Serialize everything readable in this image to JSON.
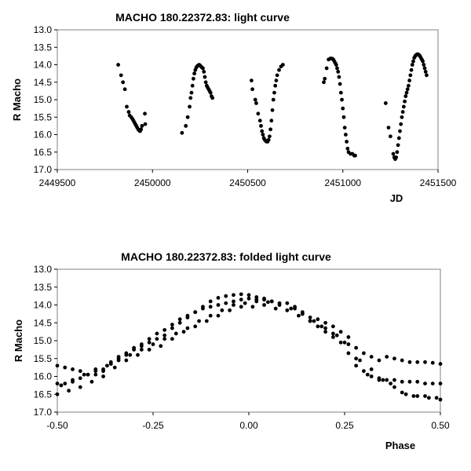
{
  "chart_data": [
    {
      "type": "scatter",
      "title": "MACHO 180.22372.83: light curve",
      "xlabel": "JD",
      "ylabel": "R Macho",
      "xlim": [
        2449500,
        2451500
      ],
      "ylim": [
        13.0,
        17.0
      ],
      "y_inverted": true,
      "grid": false,
      "legend": "none",
      "marker_color": "#000000",
      "x_ticks": [
        "2449500",
        "2450000",
        "2450500",
        "2451000",
        "2451500"
      ],
      "y_ticks": [
        "13.0",
        "13.5",
        "14.0",
        "14.5",
        "15.0",
        "15.5",
        "16.0",
        "16.5",
        "17.0"
      ],
      "series": [
        {
          "x": [
            2449820,
            2449835,
            2449845,
            2449855,
            2449865,
            2449875,
            2449880,
            2449888,
            2449895,
            2449900,
            2449905,
            2449910,
            2449915,
            2449920,
            2449925,
            2449930,
            2449935,
            2449940,
            2449945,
            2449960,
            2449962,
            2450155,
            2450175,
            2450185,
            2450195,
            2450200,
            2450205,
            2450210,
            2450215,
            2450220,
            2450225,
            2450230,
            2450235,
            2450240,
            2450245,
            2450250,
            2450255,
            2450260,
            2450265,
            2450270,
            2450275,
            2450280,
            2450285,
            2450290,
            2450295,
            2450300,
            2450305,
            2450310,
            2450315,
            2450520,
            2450525,
            2450540,
            2450545,
            2450555,
            2450565,
            2450570,
            2450575,
            2450580,
            2450585,
            2450590,
            2450595,
            2450600,
            2450605,
            2450610,
            2450615,
            2450620,
            2450625,
            2450630,
            2450635,
            2450640,
            2450645,
            2450650,
            2450655,
            2450665,
            2450675,
            2450685,
            2450900,
            2450905,
            2450915,
            2450925,
            2450935,
            2450940,
            2450945,
            2450950,
            2450955,
            2450960,
            2450965,
            2450970,
            2450975,
            2450980,
            2450985,
            2450990,
            2450995,
            2451000,
            2451005,
            2451010,
            2451015,
            2451020,
            2451025,
            2451030,
            2451040,
            2451050,
            2451060,
            2451065,
            2451225,
            2451240,
            2451250,
            2451265,
            2451270,
            2451275,
            2451280,
            2451285,
            2451290,
            2451295,
            2451300,
            2451305,
            2451310,
            2451315,
            2451320,
            2451325,
            2451330,
            2451335,
            2451340,
            2451345,
            2451350,
            2451355,
            2451360,
            2451365,
            2451370,
            2451375,
            2451380,
            2451385,
            2451390,
            2451395,
            2451400,
            2451405,
            2451410,
            2451415,
            2451420,
            2451425,
            2451430,
            2451435,
            2451440
          ],
          "y": [
            14.0,
            14.3,
            14.5,
            14.7,
            15.2,
            15.35,
            15.45,
            15.5,
            15.55,
            15.6,
            15.65,
            15.7,
            15.75,
            15.8,
            15.85,
            15.88,
            15.9,
            15.85,
            15.75,
            15.4,
            15.7,
            15.95,
            15.75,
            15.5,
            15.2,
            14.95,
            14.8,
            14.6,
            14.4,
            14.25,
            14.15,
            14.08,
            14.04,
            14.02,
            14.0,
            14.02,
            14.05,
            14.08,
            14.1,
            14.2,
            14.35,
            14.5,
            14.6,
            14.65,
            14.7,
            14.75,
            14.8,
            14.9,
            14.95,
            14.45,
            14.7,
            15.0,
            15.1,
            15.4,
            15.6,
            15.75,
            15.9,
            16.0,
            16.1,
            16.15,
            16.18,
            16.2,
            16.2,
            16.15,
            16.05,
            15.85,
            15.6,
            15.3,
            15.0,
            14.8,
            14.6,
            14.45,
            14.3,
            14.15,
            14.05,
            14.0,
            14.5,
            14.4,
            14.1,
            13.85,
            13.82,
            13.82,
            13.83,
            13.85,
            13.9,
            13.95,
            14.0,
            14.1,
            14.2,
            14.35,
            14.55,
            14.8,
            15.0,
            15.25,
            15.5,
            15.8,
            16.0,
            16.2,
            16.4,
            16.5,
            16.55,
            16.55,
            16.6,
            16.6,
            15.1,
            15.8,
            16.05,
            16.55,
            16.65,
            16.7,
            16.65,
            16.5,
            16.3,
            16.1,
            15.9,
            15.7,
            15.5,
            15.35,
            15.2,
            15.05,
            14.9,
            14.8,
            14.7,
            14.6,
            14.45,
            14.3,
            14.15,
            14.0,
            13.9,
            13.8,
            13.75,
            13.72,
            13.7,
            13.7,
            13.72,
            13.75,
            13.8,
            13.85,
            13.9,
            14.0,
            14.1,
            14.2,
            14.3
          ]
        }
      ]
    },
    {
      "type": "scatter",
      "title": "MACHO 180.22372.83: folded light curve",
      "xlabel": "Phase",
      "ylabel": "R Macho",
      "xlim": [
        -0.5,
        0.5
      ],
      "ylim": [
        13.0,
        17.0
      ],
      "y_inverted": true,
      "grid": false,
      "legend": "none",
      "marker_color": "#000000",
      "x_ticks": [
        "-0.50",
        "-0.25",
        "0.00",
        "0.25",
        "0.50"
      ],
      "y_ticks": [
        "13.0",
        "13.5",
        "14.0",
        "14.5",
        "15.0",
        "15.5",
        "16.0",
        "16.5",
        "17.0"
      ],
      "series": [
        {
          "x": [
            -0.5,
            -0.48,
            -0.46,
            -0.44,
            -0.42,
            -0.4,
            -0.38,
            -0.36,
            -0.34,
            -0.32,
            -0.3,
            -0.28,
            -0.26,
            -0.24,
            -0.22,
            -0.2,
            -0.18,
            -0.16,
            -0.14,
            -0.12,
            -0.1,
            -0.08,
            -0.06,
            -0.04,
            -0.02,
            0.0,
            0.02,
            0.04,
            0.06,
            0.1,
            0.12,
            0.14,
            0.16,
            0.18,
            0.2,
            0.22,
            0.24,
            0.26,
            0.28,
            0.3,
            0.32,
            0.34,
            0.36,
            0.38,
            0.4,
            0.42,
            0.44,
            0.46,
            0.48,
            0.5,
            -0.5,
            -0.48,
            -0.46,
            -0.44,
            -0.42,
            -0.4,
            -0.38,
            -0.36,
            -0.34,
            -0.32,
            -0.3,
            -0.28,
            -0.26,
            -0.24,
            -0.22,
            -0.2,
            -0.18,
            -0.16,
            -0.14,
            -0.12,
            -0.1,
            -0.08,
            -0.06,
            -0.04,
            -0.02,
            0.0,
            0.02,
            0.04,
            0.06,
            0.08,
            0.12,
            0.14,
            0.16,
            0.18,
            0.2,
            0.22,
            0.24,
            0.26,
            0.28,
            0.3,
            0.32,
            0.34,
            0.36,
            0.38,
            0.4,
            0.42,
            0.44,
            0.46,
            0.48,
            0.5,
            -0.5,
            -0.47,
            -0.44,
            -0.41,
            -0.38,
            -0.35,
            -0.32,
            -0.29,
            -0.26,
            -0.23,
            -0.2,
            -0.17,
            -0.14,
            -0.11,
            -0.08,
            -0.05,
            -0.02,
            0.01,
            0.04,
            0.07,
            0.1,
            0.13,
            0.16,
            0.19,
            0.22,
            0.25,
            0.28,
            0.31,
            0.34,
            0.37,
            0.4,
            0.43,
            0.46,
            0.49,
            -0.49,
            -0.46,
            -0.43,
            -0.4,
            -0.37,
            -0.34,
            -0.31,
            -0.28,
            -0.25,
            -0.22,
            -0.19,
            -0.16,
            -0.13,
            -0.1,
            -0.07,
            -0.04,
            -0.01,
            0.02,
            0.05,
            0.08,
            0.11,
            0.14,
            0.17,
            0.2,
            0.23,
            0.26,
            0.29,
            0.32,
            0.35,
            0.38,
            0.41,
            0.44,
            0.47,
            0.5
          ],
          "y": [
            15.7,
            15.75,
            15.8,
            15.85,
            15.95,
            15.95,
            15.85,
            15.6,
            15.45,
            15.35,
            15.25,
            15.15,
            15.05,
            14.95,
            14.85,
            14.65,
            14.5,
            14.35,
            14.2,
            14.05,
            13.9,
            13.8,
            13.75,
            13.72,
            13.7,
            13.72,
            13.78,
            13.82,
            13.9,
            13.95,
            14.05,
            14.2,
            14.35,
            14.4,
            14.5,
            14.6,
            14.75,
            14.9,
            15.2,
            15.35,
            15.45,
            15.55,
            15.45,
            15.5,
            15.55,
            15.6,
            15.6,
            15.6,
            15.62,
            15.65,
            16.2,
            16.2,
            16.15,
            16.05,
            15.95,
            15.85,
            15.8,
            15.65,
            15.5,
            15.4,
            15.2,
            15.1,
            14.95,
            14.8,
            14.7,
            14.55,
            14.4,
            14.3,
            14.2,
            14.1,
            14.05,
            14.0,
            13.95,
            13.9,
            13.85,
            13.82,
            13.85,
            13.85,
            13.9,
            13.95,
            14.1,
            14.25,
            14.45,
            14.6,
            14.75,
            14.9,
            15.05,
            15.35,
            15.7,
            15.85,
            16.0,
            16.05,
            16.1,
            16.1,
            16.15,
            16.15,
            16.15,
            16.2,
            16.2,
            16.2,
            16.5,
            16.4,
            16.3,
            16.15,
            16.0,
            15.75,
            15.55,
            15.4,
            15.25,
            15.15,
            14.95,
            14.75,
            14.6,
            14.45,
            14.3,
            14.15,
            14.05,
            14.05,
            14.0,
            14.1,
            14.15,
            14.3,
            14.45,
            14.6,
            14.8,
            15.05,
            15.5,
            15.95,
            16.1,
            16.2,
            16.45,
            16.55,
            16.55,
            16.6,
            16.25,
            16.1,
            15.95,
            15.8,
            15.7,
            15.55,
            15.4,
            15.25,
            15.1,
            14.95,
            14.8,
            14.65,
            14.45,
            14.3,
            14.15,
            14.0,
            13.95,
            13.9,
            13.92,
            14.0,
            14.1,
            14.25,
            14.45,
            14.65,
            14.85,
            15.1,
            15.55,
            15.8,
            16.1,
            16.3,
            16.5,
            16.55,
            16.6,
            16.65
          ]
        }
      ]
    }
  ]
}
